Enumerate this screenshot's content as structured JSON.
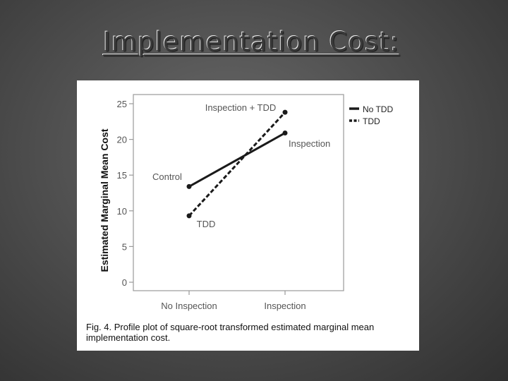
{
  "slide": {
    "title": "Implementation Cost:"
  },
  "figure": {
    "caption": "Fig. 4. Profile plot of square-root transformed estimated marginal mean implementation cost."
  },
  "chart_data": {
    "type": "line",
    "ylabel": "Estimated Marginal Mean Cost",
    "xlabel": "",
    "categories": [
      "No Inspection",
      "Inspection"
    ],
    "ylim": [
      0,
      25
    ],
    "yticks": [
      0,
      5,
      10,
      15,
      20,
      25
    ],
    "grid": false,
    "legend_position": "right",
    "series": [
      {
        "name": "No TDD",
        "values": [
          13.4,
          20.9
        ],
        "dash": "solid"
      },
      {
        "name": "TDD",
        "values": [
          9.3,
          23.8
        ],
        "dash": "dashed"
      }
    ],
    "annotations": [
      {
        "text": "Inspection + TDD",
        "near": "TDD/Inspection"
      },
      {
        "text": "Inspection",
        "near": "No TDD/Inspection"
      },
      {
        "text": "Control",
        "near": "No TDD/No Inspection"
      },
      {
        "text": "TDD",
        "near": "TDD/No Inspection"
      }
    ],
    "colors": {
      "lines": "#1a1a1a",
      "frame": "#9a9a9a",
      "text": "#555555"
    }
  }
}
